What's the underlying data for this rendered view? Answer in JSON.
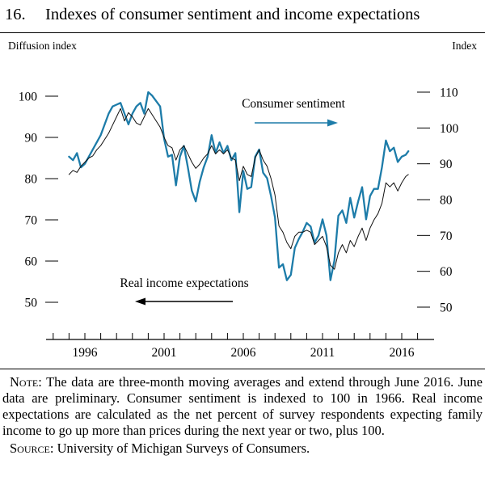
{
  "figure": {
    "number": "16.",
    "title": "Indexes of consumer sentiment and income expectations"
  },
  "axes": {
    "left_caption": "Diffusion index",
    "right_caption": "Index",
    "left_ticks": [
      100,
      90,
      80,
      70,
      60,
      50
    ],
    "right_ticks": [
      110,
      100,
      90,
      80,
      70,
      60,
      50
    ],
    "x_labels": [
      1996,
      2001,
      2006,
      2011,
      2016
    ]
  },
  "annotations": {
    "sentiment_label": "Consumer sentiment",
    "income_label": "Real income expectations"
  },
  "colors": {
    "sentiment": "#1d7ca9",
    "income": "#111111"
  },
  "note": {
    "label": "Note:",
    "text": "The data are three-month moving averages and extend through June 2016. June data are preliminary. Consumer sentiment is indexed to 100 in 1966. Real income expectations are calculated as the net percent of survey respondents expecting family income to go up more than prices during the next year or two, plus 100."
  },
  "source": {
    "label": "Source:",
    "text": "University of Michigan Surveys of Consumers."
  },
  "chart_data": {
    "type": "line",
    "title": "Indexes of consumer sentiment and income expectations",
    "x_unit": "year",
    "x_range": [
      1995.0,
      2016.42
    ],
    "left_axis": {
      "label": "Diffusion index",
      "ticks": [
        100,
        90,
        80,
        70,
        60,
        50
      ],
      "lim": [
        45,
        105
      ]
    },
    "right_axis": {
      "label": "Index",
      "ticks": [
        110,
        100,
        90,
        80,
        70,
        60,
        50
      ],
      "lim": [
        45,
        115
      ]
    },
    "x": [
      1995,
      1995.25,
      1995.5,
      1995.75,
      1996,
      1996.25,
      1996.5,
      1996.75,
      1997,
      1997.25,
      1997.5,
      1997.75,
      1998,
      1998.25,
      1998.5,
      1998.75,
      1999,
      1999.25,
      1999.5,
      1999.75,
      2000,
      2000.25,
      2000.5,
      2000.75,
      2001,
      2001.25,
      2001.5,
      2001.75,
      2002,
      2002.25,
      2002.5,
      2002.75,
      2003,
      2003.25,
      2003.5,
      2003.75,
      2004,
      2004.25,
      2004.5,
      2004.75,
      2005,
      2005.25,
      2005.5,
      2005.75,
      2006,
      2006.25,
      2006.5,
      2006.75,
      2007,
      2007.25,
      2007.5,
      2007.75,
      2008,
      2008.25,
      2008.5,
      2008.75,
      2009,
      2009.25,
      2009.5,
      2009.75,
      2010,
      2010.25,
      2010.5,
      2010.75,
      2011,
      2011.25,
      2011.5,
      2011.75,
      2012,
      2012.25,
      2012.5,
      2012.75,
      2013,
      2013.25,
      2013.5,
      2013.75,
      2014,
      2014.25,
      2014.5,
      2014.75,
      2015,
      2015.25,
      2015.5,
      2015.75,
      2016,
      2016.25,
      2016.42
    ],
    "series": [
      {
        "name": "Consumer sentiment",
        "axis": "right",
        "color": "#1d7ca9",
        "values": [
          92,
          91,
          93,
          89,
          90,
          92,
          94,
          96,
          98,
          101,
          104,
          106,
          106.5,
          107,
          104,
          101,
          104,
          106,
          107,
          104,
          110,
          109,
          107.5,
          106,
          97,
          92,
          92.5,
          84,
          92,
          95,
          89,
          82.5,
          79.5,
          85,
          89,
          92,
          98,
          93,
          96,
          93,
          95,
          91,
          93,
          76.5,
          88,
          83,
          83.5,
          92,
          94,
          87.5,
          86,
          81,
          75,
          61,
          62,
          57.5,
          59,
          66.5,
          69,
          71,
          73.5,
          72.5,
          68,
          70,
          74.5,
          70,
          57.5,
          63,
          75.5,
          77,
          73.5,
          80.5,
          75,
          79.5,
          83.5,
          74.5,
          81,
          83,
          83,
          89,
          96.5,
          93.5,
          94.5,
          90.5,
          92,
          92.5,
          93.5
        ]
      },
      {
        "name": "Real income expectations",
        "axis": "left",
        "color": "#111111",
        "values": [
          81,
          82,
          81.5,
          83,
          84,
          85,
          85.5,
          87,
          88,
          89.5,
          91,
          93,
          95,
          97,
          94,
          96,
          95,
          93.5,
          93,
          95,
          97,
          95.5,
          94,
          92.5,
          90,
          88,
          87.5,
          84.5,
          87,
          88,
          86,
          84,
          82.5,
          83.5,
          85,
          86,
          88,
          86,
          87,
          86,
          87,
          85,
          84.5,
          79.5,
          83,
          81,
          80.5,
          85,
          87,
          84.5,
          83,
          80,
          76,
          68.5,
          67,
          64.5,
          63,
          66,
          67,
          67,
          67.5,
          67,
          64,
          65,
          66,
          63.5,
          59,
          58,
          62,
          64,
          62,
          65,
          63.5,
          66,
          68,
          65,
          68,
          70,
          71.5,
          74,
          79,
          78,
          79,
          77,
          79,
          80.5,
          81
        ]
      }
    ]
  }
}
